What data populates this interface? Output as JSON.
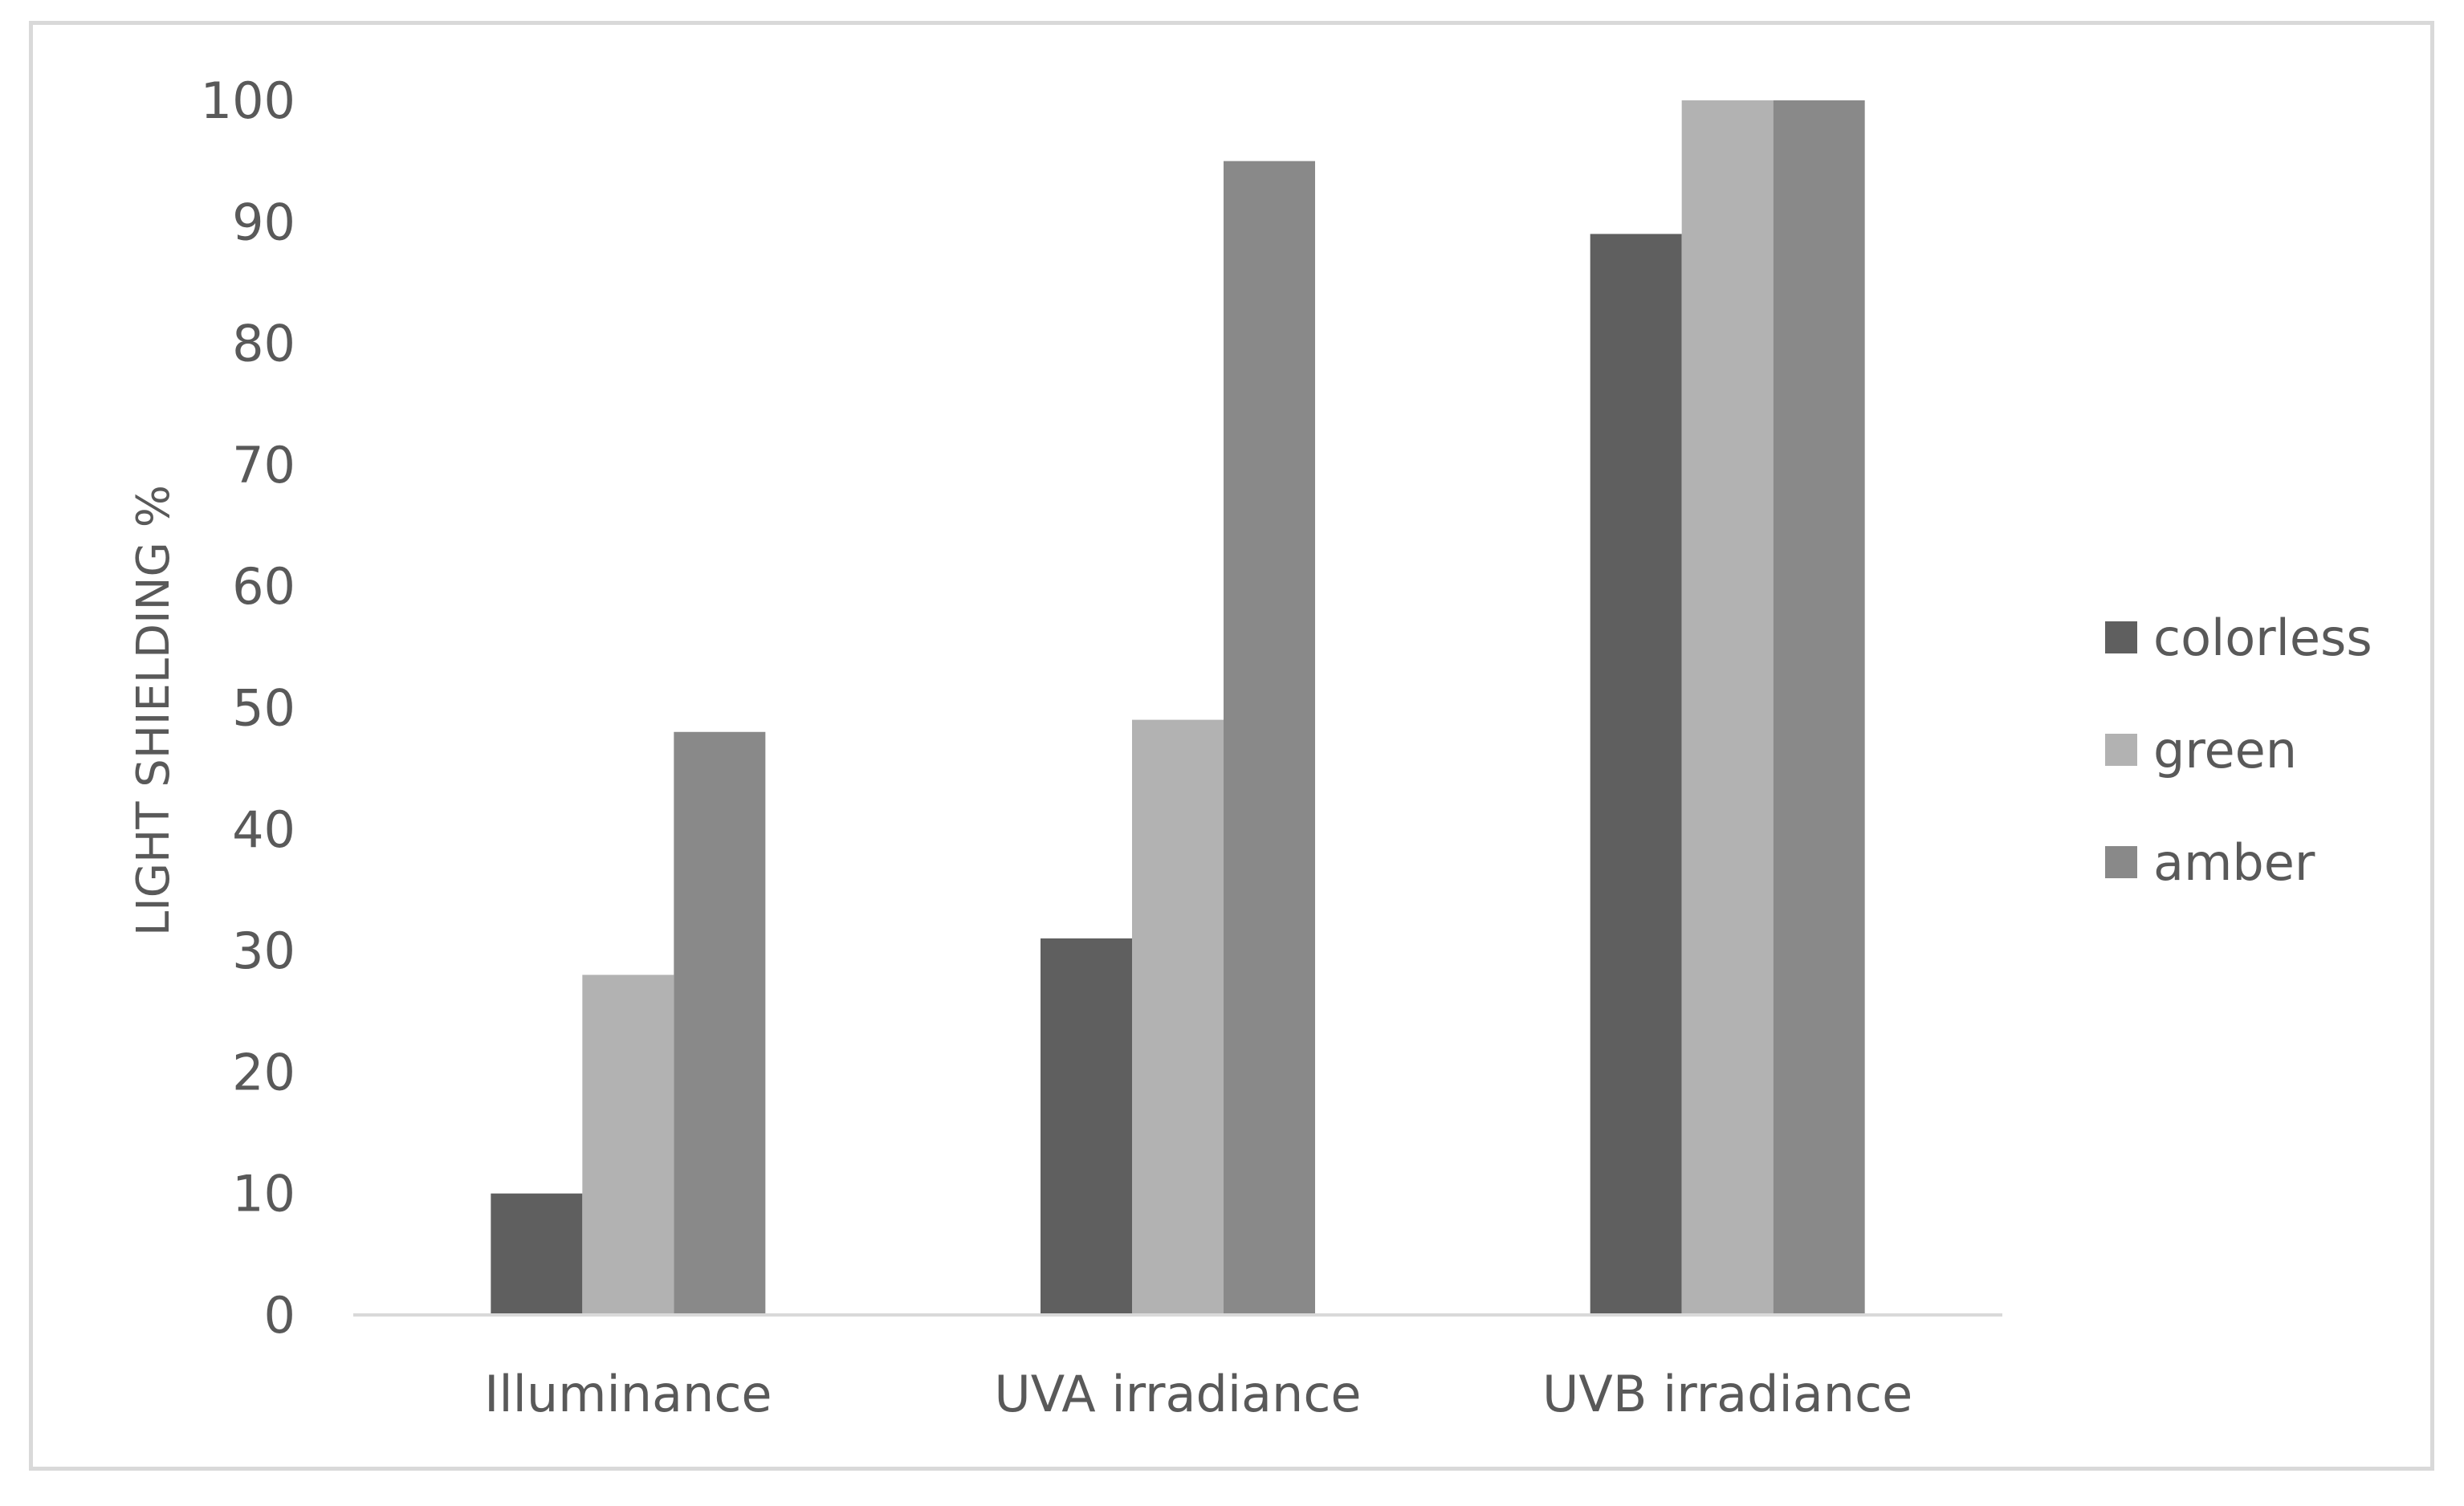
{
  "chart_data": {
    "type": "bar",
    "title": "",
    "xlabel": "",
    "ylabel": "LIGHT SHIELDING  %",
    "categories": [
      "Illuminance",
      "UVA irradiance",
      "UVB irradiance"
    ],
    "series": [
      {
        "name": "colorless",
        "values": [
          10,
          31,
          89
        ],
        "color": "#5f5f5f"
      },
      {
        "name": "green",
        "values": [
          28,
          49,
          100
        ],
        "color": "#b2b2b2"
      },
      {
        "name": "amber",
        "values": [
          48,
          95,
          100
        ],
        "color": "#898989"
      }
    ],
    "ylim": [
      0,
      100
    ],
    "yticks": [
      0,
      10,
      20,
      30,
      40,
      50,
      60,
      70,
      80,
      90,
      100
    ],
    "grid": false,
    "legend_position": "right"
  }
}
